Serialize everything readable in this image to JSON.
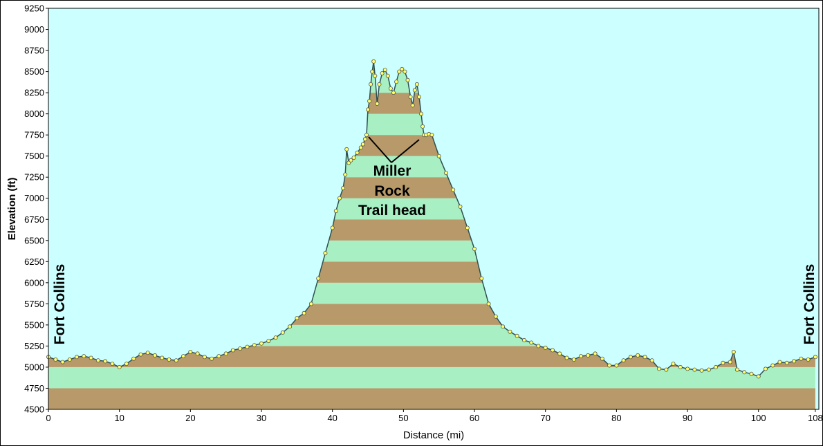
{
  "colors": {
    "plot_background": "#ccffff",
    "band_light": "#a8f0c4",
    "band_dark": "#b89a6a",
    "profile_line": "#2f4f4f",
    "marker_fill": "#ffff66",
    "marker_stroke": "#555555"
  },
  "chart_data": {
    "type": "area",
    "title": "",
    "xlabel": "Distance   (mi)",
    "ylabel": "Elevation (ft)",
    "xlim": [
      0,
      108.5
    ],
    "ylim": [
      4500,
      9250
    ],
    "x_ticks": [
      0,
      10,
      20,
      30,
      40,
      50,
      60,
      70,
      80,
      90,
      100,
      108
    ],
    "y_ticks": [
      4500,
      4750,
      5000,
      5250,
      5500,
      5750,
      6000,
      6250,
      6500,
      6750,
      7000,
      7250,
      7500,
      7750,
      8000,
      8250,
      8500,
      8750,
      9000,
      9250
    ],
    "band_interval": 250,
    "grid": false,
    "legend": "none",
    "series": [
      {
        "x": [
          0,
          1,
          2,
          3,
          4,
          5,
          6,
          7,
          8,
          9,
          10,
          11,
          12,
          13,
          14,
          15,
          16,
          17,
          18,
          19,
          20,
          21,
          22,
          23,
          24,
          25,
          26,
          27,
          28,
          29,
          30,
          31,
          32,
          33,
          34,
          35,
          36,
          37,
          38,
          39,
          40,
          40.5,
          41,
          41.5,
          41.8,
          42,
          42.3,
          42.6,
          43,
          43.5,
          44,
          44.3,
          44.6,
          44.8,
          45,
          45.2,
          45.4,
          45.6,
          45.8,
          46,
          46.3,
          46.6,
          47,
          47.4,
          47.8,
          48.2,
          48.6,
          49,
          49.4,
          49.8,
          50.2,
          50.6,
          51,
          51.3,
          51.6,
          51.9,
          52.2,
          52.5,
          52.7,
          52.9,
          53.2,
          53.6,
          54,
          55,
          56,
          57,
          58,
          59,
          60,
          61,
          62,
          63,
          64,
          65,
          66,
          67,
          68,
          69,
          70,
          71,
          72,
          73,
          74,
          75,
          76,
          77,
          78,
          79,
          80,
          81,
          82,
          83,
          84,
          85,
          86,
          87,
          88,
          89,
          90,
          91,
          92,
          93,
          94,
          95,
          96,
          96.5,
          97,
          98,
          99,
          100,
          101,
          102,
          103,
          104,
          105,
          106,
          107,
          108
        ],
        "y": [
          5120,
          5090,
          5060,
          5090,
          5120,
          5130,
          5110,
          5080,
          5070,
          5040,
          5000,
          5040,
          5100,
          5150,
          5170,
          5140,
          5110,
          5090,
          5080,
          5130,
          5180,
          5160,
          5120,
          5100,
          5130,
          5160,
          5200,
          5220,
          5240,
          5260,
          5280,
          5310,
          5350,
          5410,
          5480,
          5580,
          5640,
          5750,
          6050,
          6350,
          6650,
          6850,
          7000,
          7120,
          7280,
          7580,
          7420,
          7450,
          7480,
          7540,
          7600,
          7640,
          7700,
          7750,
          8050,
          8150,
          8350,
          8500,
          8620,
          8450,
          8120,
          8350,
          8480,
          8520,
          8450,
          8300,
          8250,
          8380,
          8500,
          8530,
          8500,
          8400,
          8200,
          8100,
          8280,
          8350,
          8200,
          8000,
          7850,
          7750,
          7750,
          7760,
          7750,
          7500,
          7300,
          7100,
          6900,
          6650,
          6400,
          6050,
          5750,
          5600,
          5480,
          5420,
          5370,
          5320,
          5290,
          5250,
          5230,
          5200,
          5160,
          5110,
          5090,
          5130,
          5140,
          5160,
          5100,
          5020,
          5020,
          5080,
          5120,
          5140,
          5120,
          5080,
          4980,
          4970,
          5040,
          5000,
          4980,
          4970,
          4960,
          4970,
          5000,
          5050,
          5060,
          5180,
          4970,
          4940,
          4920,
          4890,
          4980,
          5020,
          5060,
          5050,
          5070,
          5100,
          5090,
          5120
        ]
      }
    ],
    "annotations": {
      "left_label": "Fort Collins",
      "right_label": "Fort Collins",
      "trailhead_lines": [
        "Miller",
        "Rock",
        "Trail head"
      ]
    }
  }
}
